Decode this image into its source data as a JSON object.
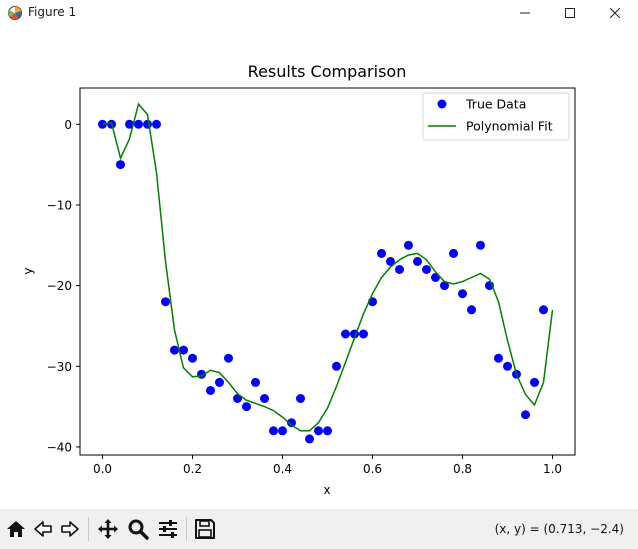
{
  "window": {
    "title": "Figure 1",
    "icon": "matplotlib-icon",
    "controls": [
      "minimize-icon",
      "maximize-icon",
      "close-icon"
    ]
  },
  "chart_data": {
    "type": "scatter",
    "title": "Results Comparison",
    "xlabel": "x",
    "ylabel": "y",
    "xlim": [
      -0.05,
      1.05
    ],
    "ylim": [
      -41,
      4.5
    ],
    "xticks": [
      0.0,
      0.2,
      0.4,
      0.6,
      0.8,
      1.0
    ],
    "xtick_labels": [
      "0.0",
      "0.2",
      "0.4",
      "0.6",
      "0.8",
      "1.0"
    ],
    "yticks": [
      0,
      -10,
      -20,
      -30,
      -40
    ],
    "ytick_labels": [
      "0",
      "−10",
      "−20",
      "−30",
      "−40"
    ],
    "grid": false,
    "legend_position": "top-right",
    "series": [
      {
        "name": "True Data",
        "kind": "scatter",
        "color": "#0000ff",
        "points": [
          [
            0.0,
            0
          ],
          [
            0.02,
            0
          ],
          [
            0.04,
            -5
          ],
          [
            0.06,
            0
          ],
          [
            0.08,
            0
          ],
          [
            0.1,
            0
          ],
          [
            0.12,
            0
          ],
          [
            0.14,
            -22
          ],
          [
            0.16,
            -28
          ],
          [
            0.18,
            -28
          ],
          [
            0.2,
            -29
          ],
          [
            0.22,
            -31
          ],
          [
            0.24,
            -33
          ],
          [
            0.26,
            -32
          ],
          [
            0.28,
            -29
          ],
          [
            0.3,
            -34
          ],
          [
            0.32,
            -35
          ],
          [
            0.34,
            -32
          ],
          [
            0.36,
            -34
          ],
          [
            0.38,
            -38
          ],
          [
            0.4,
            -38
          ],
          [
            0.42,
            -37
          ],
          [
            0.44,
            -34
          ],
          [
            0.46,
            -39
          ],
          [
            0.48,
            -38
          ],
          [
            0.5,
            -38
          ],
          [
            0.52,
            -30
          ],
          [
            0.54,
            -26
          ],
          [
            0.56,
            -26
          ],
          [
            0.58,
            -26
          ],
          [
            0.6,
            -22
          ],
          [
            0.62,
            -16
          ],
          [
            0.64,
            -17
          ],
          [
            0.66,
            -18
          ],
          [
            0.68,
            -15
          ],
          [
            0.7,
            -17
          ],
          [
            0.72,
            -18
          ],
          [
            0.74,
            -19
          ],
          [
            0.76,
            -20
          ],
          [
            0.78,
            -16
          ],
          [
            0.8,
            -21
          ],
          [
            0.82,
            -23
          ],
          [
            0.84,
            -15
          ],
          [
            0.86,
            -20
          ],
          [
            0.88,
            -29
          ],
          [
            0.9,
            -30
          ],
          [
            0.92,
            -31
          ],
          [
            0.94,
            -36
          ],
          [
            0.96,
            -32
          ],
          [
            0.98,
            -23
          ]
        ]
      },
      {
        "name": "Polynomial Fit",
        "kind": "line",
        "color": "#008000",
        "points": [
          [
            0.0,
            0
          ],
          [
            0.02,
            0.2
          ],
          [
            0.04,
            -4.2
          ],
          [
            0.06,
            -1.8
          ],
          [
            0.08,
            2.5
          ],
          [
            0.1,
            1.2
          ],
          [
            0.12,
            -6
          ],
          [
            0.14,
            -17
          ],
          [
            0.16,
            -25.5
          ],
          [
            0.18,
            -30.2
          ],
          [
            0.2,
            -31.3
          ],
          [
            0.22,
            -31.2
          ],
          [
            0.24,
            -30.5
          ],
          [
            0.26,
            -30.8
          ],
          [
            0.28,
            -32
          ],
          [
            0.3,
            -33.4
          ],
          [
            0.32,
            -34.2
          ],
          [
            0.34,
            -34.6
          ],
          [
            0.36,
            -35
          ],
          [
            0.38,
            -35.5
          ],
          [
            0.4,
            -36.3
          ],
          [
            0.42,
            -37.3
          ],
          [
            0.44,
            -38
          ],
          [
            0.46,
            -38
          ],
          [
            0.48,
            -37
          ],
          [
            0.5,
            -35.2
          ],
          [
            0.52,
            -32.5
          ],
          [
            0.54,
            -29.5
          ],
          [
            0.56,
            -26.5
          ],
          [
            0.58,
            -23.5
          ],
          [
            0.6,
            -21
          ],
          [
            0.62,
            -19
          ],
          [
            0.64,
            -17.7
          ],
          [
            0.66,
            -16.8
          ],
          [
            0.68,
            -16.2
          ],
          [
            0.7,
            -16
          ],
          [
            0.72,
            -16.8
          ],
          [
            0.74,
            -18.3
          ],
          [
            0.76,
            -19.5
          ],
          [
            0.78,
            -19.8
          ],
          [
            0.8,
            -19.5
          ],
          [
            0.82,
            -19
          ],
          [
            0.84,
            -18.5
          ],
          [
            0.86,
            -19.2
          ],
          [
            0.88,
            -22
          ],
          [
            0.9,
            -26.8
          ],
          [
            0.92,
            -31
          ],
          [
            0.94,
            -33.5
          ],
          [
            0.96,
            -34.8
          ],
          [
            0.98,
            -32
          ],
          [
            1.0,
            -23
          ]
        ]
      }
    ]
  },
  "toolbar": {
    "buttons": [
      "home-icon",
      "back-icon",
      "forward-icon",
      "pan-icon",
      "zoom-icon",
      "configure-subplots-icon",
      "save-icon"
    ],
    "coords_text": "(x, y) = (0.713, −2.4)"
  }
}
